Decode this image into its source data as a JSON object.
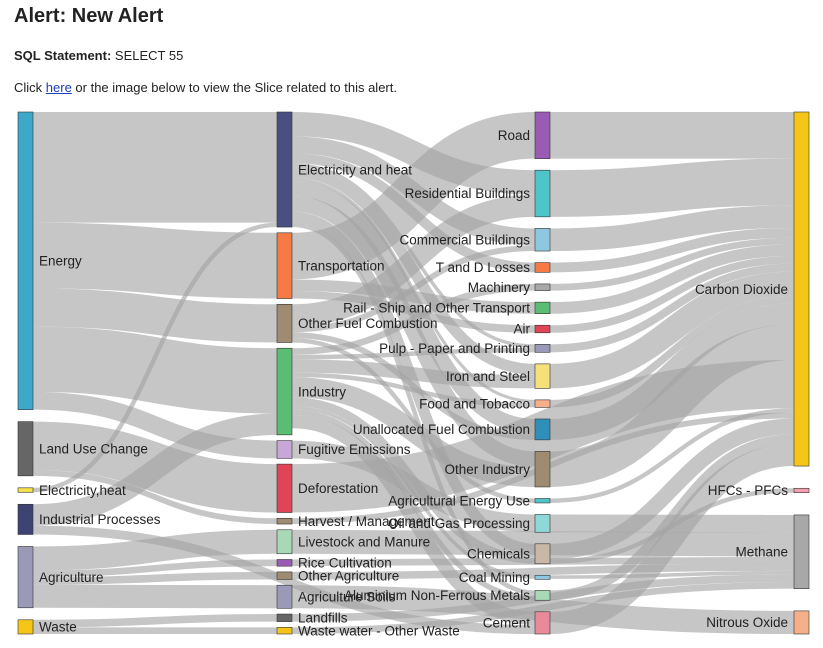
{
  "header": {
    "title": "Alert: New Alert",
    "sql_label": "SQL Statement:",
    "sql_value": "SELECT 55",
    "click_prefix": "Click ",
    "click_link": "here",
    "click_suffix": " or the image below to view the Slice related to this alert."
  },
  "chart_data": {
    "type": "sankey",
    "title": "",
    "nodes": [
      {
        "name": "Energy",
        "color": "#3fa7c9"
      },
      {
        "name": "Land Use Change",
        "color": "#666666"
      },
      {
        "name": "Electricity,heat",
        "color": "#f5e04a"
      },
      {
        "name": "Industrial Processes",
        "color": "#3d4373"
      },
      {
        "name": "Agriculture",
        "color": "#9a9ab8"
      },
      {
        "name": "Waste",
        "color": "#f5c518"
      },
      {
        "name": "Electricity and heat",
        "color": "#4a4f82"
      },
      {
        "name": "Transportation",
        "color": "#f57a43"
      },
      {
        "name": "Other Fuel Combustion",
        "color": "#9e8b72"
      },
      {
        "name": "Industry",
        "color": "#5bbc73"
      },
      {
        "name": "Fugitive Emissions",
        "color": "#c9a6d8"
      },
      {
        "name": "Deforestation",
        "color": "#e04557"
      },
      {
        "name": "Harvest / Management",
        "color": "#9e8b72"
      },
      {
        "name": "Livestock and Manure",
        "color": "#a8d8b5"
      },
      {
        "name": "Rice Cultivation",
        "color": "#9a5bb5"
      },
      {
        "name": "Other Agriculture",
        "color": "#9e8b72"
      },
      {
        "name": "Agriculture Soils",
        "color": "#9a9ab8"
      },
      {
        "name": "Landfills",
        "color": "#666666"
      },
      {
        "name": "Waste water - Other Waste",
        "color": "#f5c518"
      },
      {
        "name": "Road",
        "color": "#9a5bb5"
      },
      {
        "name": "Residential Buildings",
        "color": "#4fc4c9"
      },
      {
        "name": "Commercial Buildings",
        "color": "#8ec8e0"
      },
      {
        "name": "T and D Losses",
        "color": "#f57a43"
      },
      {
        "name": "Machinery",
        "color": "#a8a8a8"
      },
      {
        "name": "Rail - Ship and Other Transport",
        "color": "#5bbc73"
      },
      {
        "name": "Air",
        "color": "#e04557"
      },
      {
        "name": "Pulp - Paper and Printing",
        "color": "#9a9ab8"
      },
      {
        "name": "Iron and Steel",
        "color": "#f5e07a"
      },
      {
        "name": "Food and Tobacco",
        "color": "#f5b08a"
      },
      {
        "name": "Unallocated Fuel Combustion",
        "color": "#2f8fb8"
      },
      {
        "name": "Other Industry",
        "color": "#9e8b72"
      },
      {
        "name": "Agricultural Energy Use",
        "color": "#4fc4c9"
      },
      {
        "name": "Oil and Gas Processing",
        "color": "#8ed8d8"
      },
      {
        "name": "Chemicals",
        "color": "#c9b8a8"
      },
      {
        "name": "Coal Mining",
        "color": "#8ec8e0"
      },
      {
        "name": "Aluminium Non-Ferrous Metals",
        "color": "#a8d8b5"
      },
      {
        "name": "Cement",
        "color": "#e88a9a"
      },
      {
        "name": "Carbon Dioxide",
        "color": "#f5c518"
      },
      {
        "name": "HFCs - PFCs",
        "color": "#f0a0b0"
      },
      {
        "name": "Methane",
        "color": "#a8a8a8"
      },
      {
        "name": "Nitrous Oxide",
        "color": "#f5b08a"
      }
    ],
    "links": [
      {
        "source": "Energy",
        "target": "Electricity and heat",
        "value": 24.9
      },
      {
        "source": "Energy",
        "target": "Transportation",
        "value": 14.8
      },
      {
        "source": "Energy",
        "target": "Other Fuel Combustion",
        "value": 8.6
      },
      {
        "source": "Energy",
        "target": "Industry",
        "value": 14.7
      },
      {
        "source": "Energy",
        "target": "Fugitive Emissions",
        "value": 4.0
      },
      {
        "source": "Land Use Change",
        "target": "Deforestation",
        "value": 10.9
      },
      {
        "source": "Land Use Change",
        "target": "Harvest / Management",
        "value": 1.3
      },
      {
        "source": "Electricity,heat",
        "target": "Electricity and heat",
        "value": 1.0
      },
      {
        "source": "Industrial Processes",
        "target": "Industry",
        "value": 4.8
      },
      {
        "source": "Industrial Processes",
        "target": "Cement",
        "value": 2.0
      },
      {
        "source": "Agriculture",
        "target": "Livestock and Manure",
        "value": 5.4
      },
      {
        "source": "Agriculture",
        "target": "Rice Cultivation",
        "value": 1.5
      },
      {
        "source": "Agriculture",
        "target": "Other Agriculture",
        "value": 1.7
      },
      {
        "source": "Agriculture",
        "target": "Agriculture Soils",
        "value": 5.2
      },
      {
        "source": "Waste",
        "target": "Landfills",
        "value": 1.7
      },
      {
        "source": "Waste",
        "target": "Waste water - Other Waste",
        "value": 1.5
      },
      {
        "source": "Electricity and heat",
        "target": "Residential Buildings",
        "value": 5.5
      },
      {
        "source": "Electricity and heat",
        "target": "Commercial Buildings",
        "value": 3.8
      },
      {
        "source": "Electricity and heat",
        "target": "T and D Losses",
        "value": 2.2
      },
      {
        "source": "Electricity and heat",
        "target": "Unallocated Fuel Combustion",
        "value": 3.4
      },
      {
        "source": "Electricity and heat",
        "target": "Other Industry",
        "value": 3.5
      },
      {
        "source": "Electricity and heat",
        "target": "Iron and Steel",
        "value": 2.5
      },
      {
        "source": "Electricity and heat",
        "target": "Chemicals",
        "value": 2.5
      },
      {
        "source": "Electricity and heat",
        "target": "Aluminium Non-Ferrous Metals",
        "value": 1.0
      },
      {
        "source": "Electricity and heat",
        "target": "Pulp - Paper and Printing",
        "value": 0.8
      },
      {
        "source": "Electricity and heat",
        "target": "Food and Tobacco",
        "value": 0.7
      },
      {
        "source": "Transportation",
        "target": "Road",
        "value": 10.5
      },
      {
        "source": "Transportation",
        "target": "Air",
        "value": 1.7
      },
      {
        "source": "Transportation",
        "target": "Rail - Ship and Other Transport",
        "value": 2.6
      },
      {
        "source": "Other Fuel Combustion",
        "target": "Residential Buildings",
        "value": 5.0
      },
      {
        "source": "Other Fuel Combustion",
        "target": "Commercial Buildings",
        "value": 1.3
      },
      {
        "source": "Other Fuel Combustion",
        "target": "Unallocated Fuel Combustion",
        "value": 1.3
      },
      {
        "source": "Other Fuel Combustion",
        "target": "Agricultural Energy Use",
        "value": 1.0
      },
      {
        "source": "Industry",
        "target": "Iron and Steel",
        "value": 3.0
      },
      {
        "source": "Industry",
        "target": "Machinery",
        "value": 1.5
      },
      {
        "source": "Industry",
        "target": "Other Industry",
        "value": 4.5
      },
      {
        "source": "Industry",
        "target": "Chemicals",
        "value": 2.0
      },
      {
        "source": "Industry",
        "target": "Cement",
        "value": 3.0
      },
      {
        "source": "Industry",
        "target": "Pulp - Paper and Printing",
        "value": 1.0
      },
      {
        "source": "Industry",
        "target": "Food and Tobacco",
        "value": 1.0
      },
      {
        "source": "Industry",
        "target": "Aluminium Non-Ferrous Metals",
        "value": 1.2
      },
      {
        "source": "Industry",
        "target": "Coal Mining",
        "value": 0.8
      },
      {
        "source": "Fugitive Emissions",
        "target": "Oil and Gas Processing",
        "value": 4.0
      },
      {
        "source": "Deforestation",
        "target": "Carbon Dioxide",
        "value": 10.9
      },
      {
        "source": "Harvest / Management",
        "target": "Carbon Dioxide",
        "value": 1.3
      },
      {
        "source": "Livestock and Manure",
        "target": "Methane",
        "value": 5.4
      },
      {
        "source": "Rice Cultivation",
        "target": "Methane",
        "value": 1.5
      },
      {
        "source": "Other Agriculture",
        "target": "Methane",
        "value": 1.7
      },
      {
        "source": "Agriculture Soils",
        "target": "Nitrous Oxide",
        "value": 5.2
      },
      {
        "source": "Landfills",
        "target": "Methane",
        "value": 1.7
      },
      {
        "source": "Waste water - Other Waste",
        "target": "Methane",
        "value": 1.5
      },
      {
        "source": "Road",
        "target": "Carbon Dioxide",
        "value": 10.5
      },
      {
        "source": "Residential Buildings",
        "target": "Carbon Dioxide",
        "value": 10.5
      },
      {
        "source": "Commercial Buildings",
        "target": "Carbon Dioxide",
        "value": 5.1
      },
      {
        "source": "T and D Losses",
        "target": "Carbon Dioxide",
        "value": 2.2
      },
      {
        "source": "Machinery",
        "target": "Carbon Dioxide",
        "value": 1.5
      },
      {
        "source": "Rail - Ship and Other Transport",
        "target": "Carbon Dioxide",
        "value": 2.6
      },
      {
        "source": "Air",
        "target": "Carbon Dioxide",
        "value": 1.7
      },
      {
        "source": "Pulp - Paper and Printing",
        "target": "Carbon Dioxide",
        "value": 1.8
      },
      {
        "source": "Iron and Steel",
        "target": "Carbon Dioxide",
        "value": 5.5
      },
      {
        "source": "Food and Tobacco",
        "target": "Carbon Dioxide",
        "value": 1.7
      },
      {
        "source": "Unallocated Fuel Combustion",
        "target": "Carbon Dioxide",
        "value": 4.7
      },
      {
        "source": "Other Industry",
        "target": "Carbon Dioxide",
        "value": 8.0
      },
      {
        "source": "Agricultural Energy Use",
        "target": "Carbon Dioxide",
        "value": 1.0
      },
      {
        "source": "Oil and Gas Processing",
        "target": "Methane",
        "value": 4.0
      },
      {
        "source": "Chemicals",
        "target": "Carbon Dioxide",
        "value": 3.5
      },
      {
        "source": "Chemicals",
        "target": "HFCs - PFCs",
        "value": 1.0
      },
      {
        "source": "Coal Mining",
        "target": "Methane",
        "value": 0.8
      },
      {
        "source": "Aluminium Non-Ferrous Metals",
        "target": "Carbon Dioxide",
        "value": 2.2
      },
      {
        "source": "Cement",
        "target": "Carbon Dioxide",
        "value": 5.0
      }
    ]
  }
}
